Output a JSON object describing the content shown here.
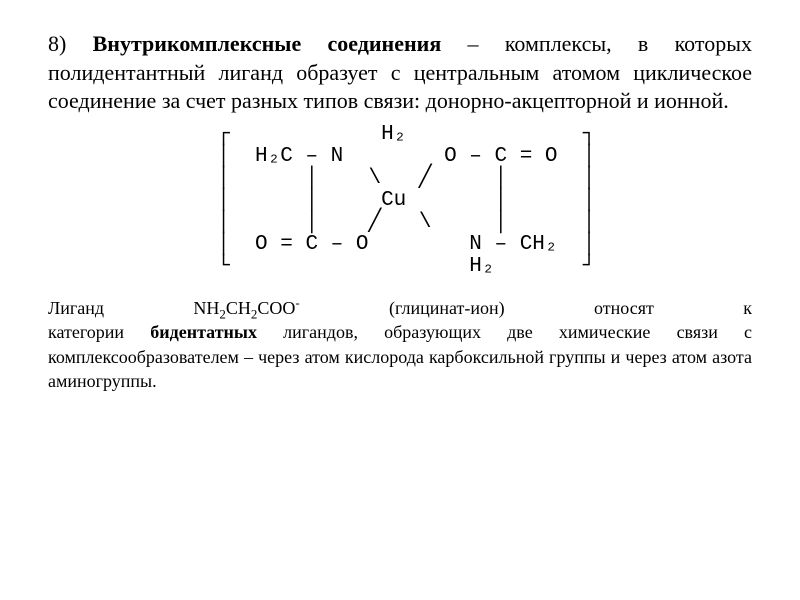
{
  "colors": {
    "background": "#ffffff",
    "text": "#000000"
  },
  "heading": {
    "number": "8)",
    "term": "Внутрикомплексные соединения",
    "dash": "–",
    "body": "комплексы, в которых полидентантный лиганд образует с центральным атомом циклическое соединение за счет разных типов связи: донорно-акцепторной и ионной."
  },
  "diagram": {
    "line1": " ┌            H₂              ┐",
    "line2": " │  H₂C – N        O – C = O  │",
    "line3": " │      │    \\   ╱     │      │",
    "line4": " │      │     Cu       │      │",
    "line5": " │      │    ╱   \\     │      │",
    "line6": " │  O = C – O        N – CH₂  │",
    "line7": " └                   H₂       ┘"
  },
  "footnote": {
    "l1_w1": "Лиганд",
    "l1_formula_pre": "NH",
    "l1_formula_s1": "2",
    "l1_formula_mid1": "CH",
    "l1_formula_s2": "2",
    "l1_formula_mid2": "COO",
    "l1_formula_sup": "-",
    "l1_w3": "(глицинат-ион)",
    "l1_w4": "относят",
    "l1_w5": "к",
    "l2_pre": "категории",
    "l2_bold": "бидентатных",
    "l2_post": "лигандов, образующих две химические связи с комплексообразователем – через атом кислорода карбоксильной группы и через атом азота аминогруппы."
  }
}
